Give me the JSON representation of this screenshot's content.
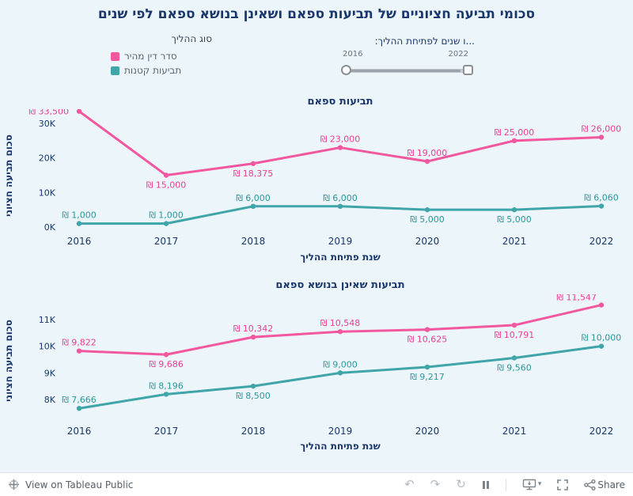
{
  "title": "סכומי תביעה חציוניים של תביעות ספאם ושאינן בנושא ספאם לפי שנים",
  "legend": {
    "title": "סוג ההליך",
    "items": [
      {
        "label": "סדר דין מהיר",
        "color": "#f2579f"
      },
      {
        "label": "תביעות קטנות",
        "color": "#3fa5a8"
      }
    ]
  },
  "slider": {
    "label": "...ו שנים לפתיחת ההליך:",
    "start": "2016",
    "end": "2022"
  },
  "chart_data": [
    {
      "type": "line",
      "title": "תביעות ספאם",
      "xlabel": "שנת פתיחת ההליך",
      "ylabel": "סכום תביעה חציוני",
      "categories": [
        "2016",
        "2017",
        "2018",
        "2019",
        "2020",
        "2021",
        "2022"
      ],
      "ylim": [
        0,
        34000
      ],
      "grid": false,
      "yticks": [
        {
          "label": "30K",
          "value": 30000
        },
        {
          "label": "20K",
          "value": 20000
        },
        {
          "label": "10K",
          "value": 10000
        },
        {
          "label": "0K",
          "value": 0
        }
      ],
      "series": [
        {
          "name": "סדר דין מהיר",
          "color": "#f2579f",
          "label_color": "#ed3d94",
          "values": [
            33500,
            15000,
            18375,
            23000,
            19000,
            25000,
            26000
          ],
          "labels": [
            "₪ 33,500",
            "₪ 15,000",
            "₪ 18,375",
            "₪ 23,000",
            "₪ 19,000",
            "₪ 25,000",
            "₪ 26,000"
          ],
          "label_pos": [
            "left",
            "below",
            "below",
            "above",
            "above",
            "above",
            "above"
          ]
        },
        {
          "name": "תביעות קטנות",
          "color": "#3fa5a8",
          "label_color": "#2b989c",
          "values": [
            1000,
            1000,
            6000,
            6000,
            5000,
            5000,
            6060
          ],
          "labels": [
            "₪ 1,000",
            "₪ 1,000",
            "₪ 6,000",
            "₪ 6,000",
            "₪ 5,000",
            "₪ 5,000",
            "₪ 6,060"
          ],
          "label_pos": [
            "above",
            "above",
            "above",
            "above",
            "below",
            "below",
            "above"
          ]
        }
      ]
    },
    {
      "type": "line",
      "title": "תביעות שאינן בנושא ספאם",
      "xlabel": "שנת פתיחת ההליך",
      "ylabel": "סכום תביעה חציוני",
      "categories": [
        "2016",
        "2017",
        "2018",
        "2019",
        "2020",
        "2021",
        "2022"
      ],
      "ylim": [
        7500,
        11800
      ],
      "grid": false,
      "yticks": [
        {
          "label": "11K",
          "value": 11000
        },
        {
          "label": "10K",
          "value": 10000
        },
        {
          "label": "9K",
          "value": 9000
        },
        {
          "label": "8K",
          "value": 8000
        }
      ],
      "series": [
        {
          "name": "סדר דין מהיר",
          "color": "#f2579f",
          "label_color": "#ed3d94",
          "values": [
            9822,
            9686,
            10342,
            10548,
            10625,
            10791,
            11547
          ],
          "labels": [
            "₪ 9,822",
            "₪ 9,686",
            "₪ 10,342",
            "₪ 10,548",
            "₪ 10,625",
            "₪ 10,791",
            "₪ 11,547"
          ],
          "label_pos": [
            "above",
            "below",
            "above",
            "above",
            "below",
            "below",
            "aboveleft"
          ]
        },
        {
          "name": "תביעות קטנות",
          "color": "#3fa5a8",
          "label_color": "#2b989c",
          "values": [
            7666,
            8196,
            8500,
            9000,
            9217,
            9560,
            10000
          ],
          "labels": [
            "₪ 7,666",
            "₪ 8,196",
            "₪ 8,500",
            "₪ 9,000",
            "₪ 9,217",
            "₪ 9,560",
            "₪ 10,000"
          ],
          "label_pos": [
            "above",
            "above",
            "below",
            "above",
            "below",
            "below",
            "above"
          ]
        }
      ]
    }
  ],
  "footer": {
    "view_label": "View on Tableau Public",
    "share_label": "Share",
    "icons": [
      "tableau-logo",
      "undo",
      "redo",
      "reset",
      "pause",
      "download",
      "fullscreen",
      "share"
    ]
  }
}
